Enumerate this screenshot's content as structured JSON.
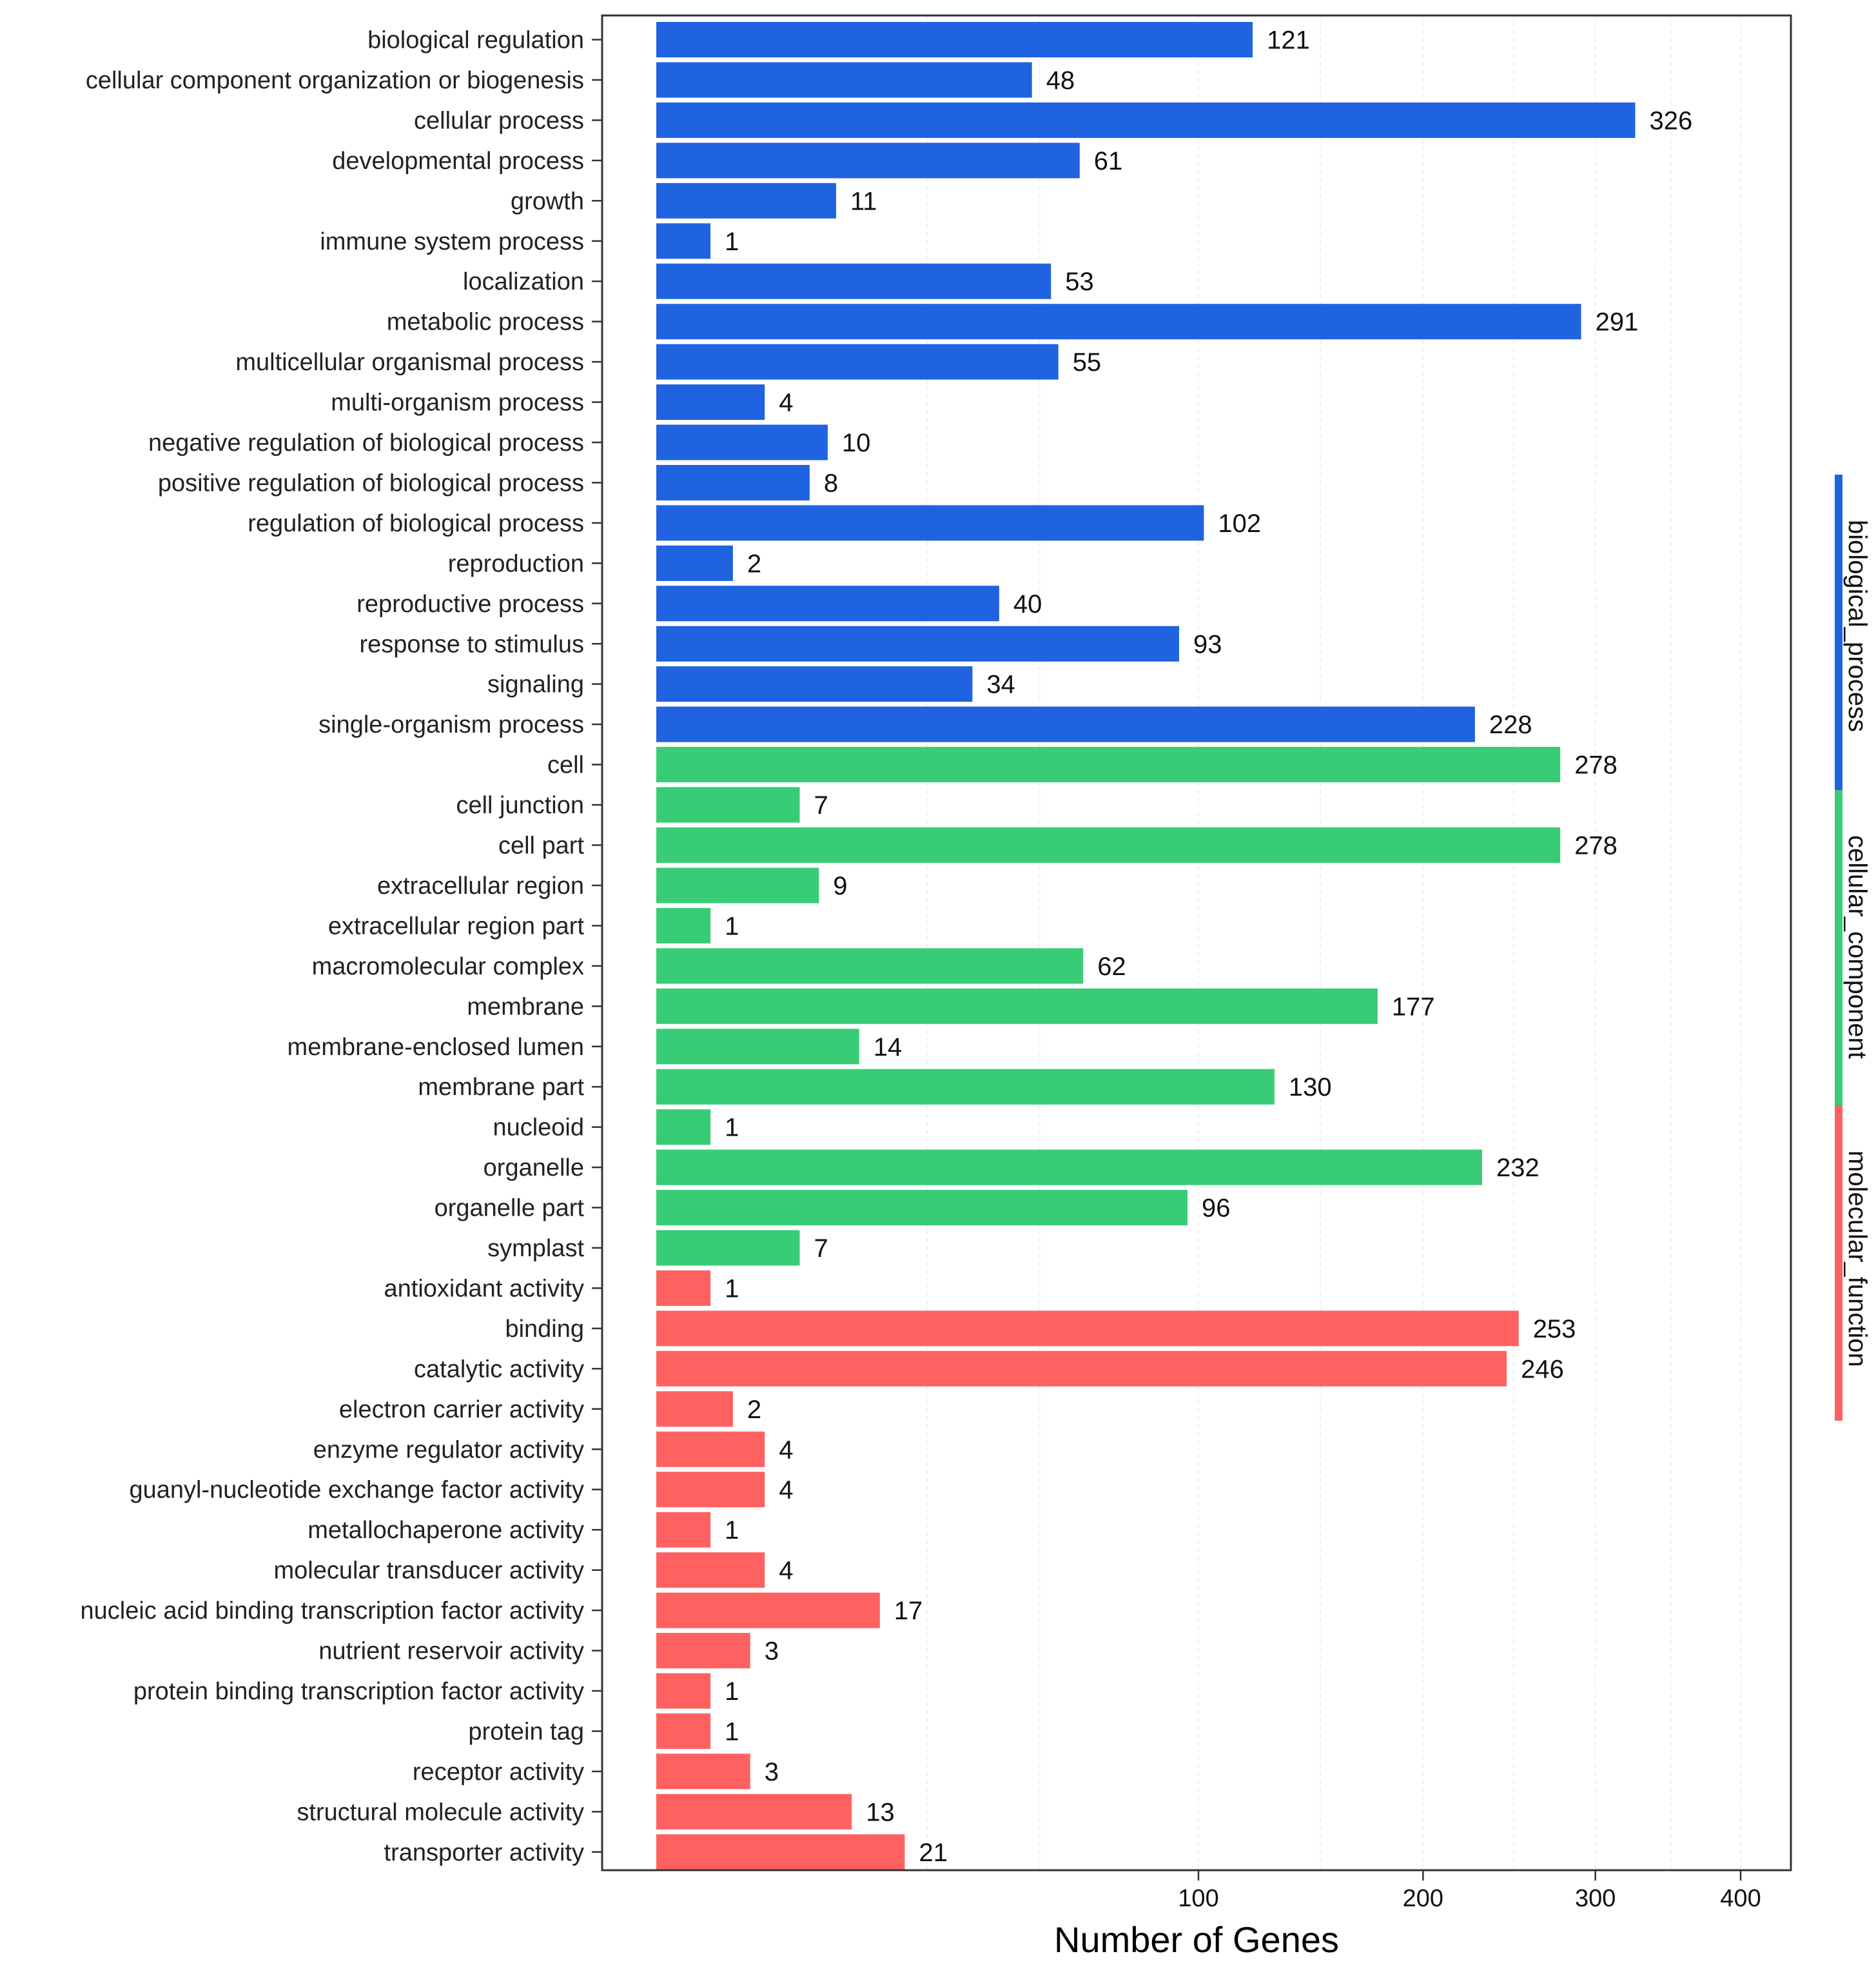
{
  "chart_data": {
    "type": "bar",
    "orientation": "horizontal",
    "scale": "sqrt",
    "xlabel": "Number of Genes",
    "xticks": [
      100,
      200,
      300,
      400
    ],
    "xlim": [
      0,
      420
    ],
    "grid": true,
    "legend_position": "right",
    "groups": [
      {
        "name": "biological_process",
        "color": "#1f63e0"
      },
      {
        "name": "cellular_component",
        "color": "#38cc76"
      },
      {
        "name": "molecular_function",
        "color": "#ff6161"
      }
    ],
    "bars": [
      {
        "label": "biological regulation",
        "value": 121,
        "group": "biological_process"
      },
      {
        "label": "cellular component organization or biogenesis",
        "value": 48,
        "group": "biological_process"
      },
      {
        "label": "cellular process",
        "value": 326,
        "group": "biological_process"
      },
      {
        "label": "developmental process",
        "value": 61,
        "group": "biological_process"
      },
      {
        "label": "growth",
        "value": 11,
        "group": "biological_process"
      },
      {
        "label": "immune system process",
        "value": 1,
        "group": "biological_process"
      },
      {
        "label": "localization",
        "value": 53,
        "group": "biological_process"
      },
      {
        "label": "metabolic process",
        "value": 291,
        "group": "biological_process"
      },
      {
        "label": "multicellular organismal process",
        "value": 55,
        "group": "biological_process"
      },
      {
        "label": "multi-organism process",
        "value": 4,
        "group": "biological_process"
      },
      {
        "label": "negative regulation of biological process",
        "value": 10,
        "group": "biological_process"
      },
      {
        "label": "positive regulation of biological process",
        "value": 8,
        "group": "biological_process"
      },
      {
        "label": "regulation of biological process",
        "value": 102,
        "group": "biological_process"
      },
      {
        "label": "reproduction",
        "value": 2,
        "group": "biological_process"
      },
      {
        "label": "reproductive process",
        "value": 40,
        "group": "biological_process"
      },
      {
        "label": "response to stimulus",
        "value": 93,
        "group": "biological_process"
      },
      {
        "label": "signaling",
        "value": 34,
        "group": "biological_process"
      },
      {
        "label": "single-organism process",
        "value": 228,
        "group": "biological_process"
      },
      {
        "label": "cell",
        "value": 278,
        "group": "cellular_component"
      },
      {
        "label": "cell junction",
        "value": 7,
        "group": "cellular_component"
      },
      {
        "label": "cell part",
        "value": 278,
        "group": "cellular_component"
      },
      {
        "label": "extracellular region",
        "value": 9,
        "group": "cellular_component"
      },
      {
        "label": "extracellular region part",
        "value": 1,
        "group": "cellular_component"
      },
      {
        "label": "macromolecular complex",
        "value": 62,
        "group": "cellular_component"
      },
      {
        "label": "membrane",
        "value": 177,
        "group": "cellular_component"
      },
      {
        "label": "membrane-enclosed lumen",
        "value": 14,
        "group": "cellular_component"
      },
      {
        "label": "membrane part",
        "value": 130,
        "group": "cellular_component"
      },
      {
        "label": "nucleoid",
        "value": 1,
        "group": "cellular_component"
      },
      {
        "label": "organelle",
        "value": 232,
        "group": "cellular_component"
      },
      {
        "label": "organelle part",
        "value": 96,
        "group": "cellular_component"
      },
      {
        "label": "symplast",
        "value": 7,
        "group": "cellular_component"
      },
      {
        "label": "antioxidant activity",
        "value": 1,
        "group": "molecular_function"
      },
      {
        "label": "binding",
        "value": 253,
        "group": "molecular_function"
      },
      {
        "label": "catalytic activity",
        "value": 246,
        "group": "molecular_function"
      },
      {
        "label": "electron carrier activity",
        "value": 2,
        "group": "molecular_function"
      },
      {
        "label": "enzyme regulator activity",
        "value": 4,
        "group": "molecular_function"
      },
      {
        "label": "guanyl-nucleotide exchange factor activity",
        "value": 4,
        "group": "molecular_function"
      },
      {
        "label": "metallochaperone activity",
        "value": 1,
        "group": "molecular_function"
      },
      {
        "label": "molecular transducer activity",
        "value": 4,
        "group": "molecular_function"
      },
      {
        "label": "nucleic acid binding transcription factor activity",
        "value": 17,
        "group": "molecular_function"
      },
      {
        "label": "nutrient reservoir activity",
        "value": 3,
        "group": "molecular_function"
      },
      {
        "label": "protein binding transcription factor activity",
        "value": 1,
        "group": "molecular_function"
      },
      {
        "label": "protein tag",
        "value": 1,
        "group": "molecular_function"
      },
      {
        "label": "receptor activity",
        "value": 3,
        "group": "molecular_function"
      },
      {
        "label": "structural molecule activity",
        "value": 13,
        "group": "molecular_function"
      },
      {
        "label": "transporter activity",
        "value": 21,
        "group": "molecular_function"
      }
    ]
  }
}
